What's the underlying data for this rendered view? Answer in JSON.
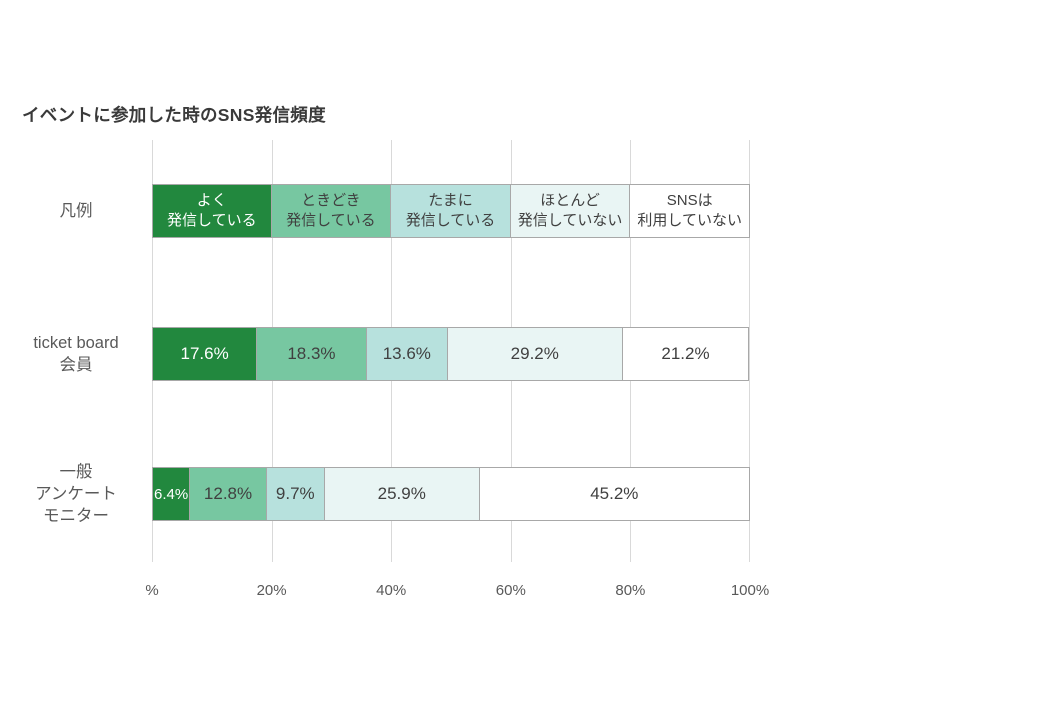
{
  "title": "イベントに参加した時のSNS発信頻度",
  "colors": {
    "c1": "#22883e",
    "c2": "#77c7a1",
    "c3": "#b7e1dd",
    "c4": "#e9f5f4",
    "c5": "#ffffff",
    "border": "#a8a8a8",
    "grid": "#d9d9d9",
    "ink": "#404040",
    "muted": "#595959"
  },
  "legend": {
    "row_label": "凡例",
    "items": [
      {
        "line1": "よく",
        "line2": "発信している"
      },
      {
        "line1": "ときどき",
        "line2": "発信している"
      },
      {
        "line1": "たまに",
        "line2": "発信している"
      },
      {
        "line1": "ほとんど",
        "line2": "発信していない"
      },
      {
        "line1": "SNSは",
        "line2": "利用していない"
      }
    ]
  },
  "rows": [
    {
      "label_lines": [
        "ticket board",
        "会員"
      ],
      "segment_labels": [
        "17.6%",
        "18.3%",
        "13.6%",
        "29.2%",
        "21.2%"
      ]
    },
    {
      "label_lines": [
        "一般",
        "アンケート",
        "モニター"
      ],
      "segment_labels": [
        "6.4%",
        "12.8%",
        "9.7%",
        "25.9%",
        "45.2%"
      ]
    }
  ],
  "x_axis": {
    "ticks": [
      "%",
      "20%",
      "40%",
      "60%",
      "80%",
      "100%"
    ]
  },
  "chart_data": {
    "type": "bar",
    "subtype": "horizontal-stacked",
    "title": "イベントに参加した時のSNS発信頻度",
    "categories": [
      "よく発信している",
      "ときどき発信している",
      "たまに発信している",
      "ほとんど発信していない",
      "SNSは利用していない"
    ],
    "rows": [
      {
        "label": "ticket board 会員",
        "values": [
          17.6,
          18.3,
          13.6,
          29.2,
          21.2
        ]
      },
      {
        "label": "一般アンケートモニター",
        "values": [
          6.4,
          12.8,
          9.7,
          25.9,
          45.2
        ]
      }
    ],
    "legend_row_label": "凡例",
    "x_ticks": [
      "%",
      "20%",
      "40%",
      "60%",
      "80%",
      "100%"
    ],
    "xlim": [
      0,
      100
    ],
    "grid": "vertical",
    "legend_position": "in-chart-top-row",
    "series_colors": [
      "#22883e",
      "#77c7a1",
      "#b7e1dd",
      "#e9f5f4",
      "#ffffff"
    ]
  }
}
